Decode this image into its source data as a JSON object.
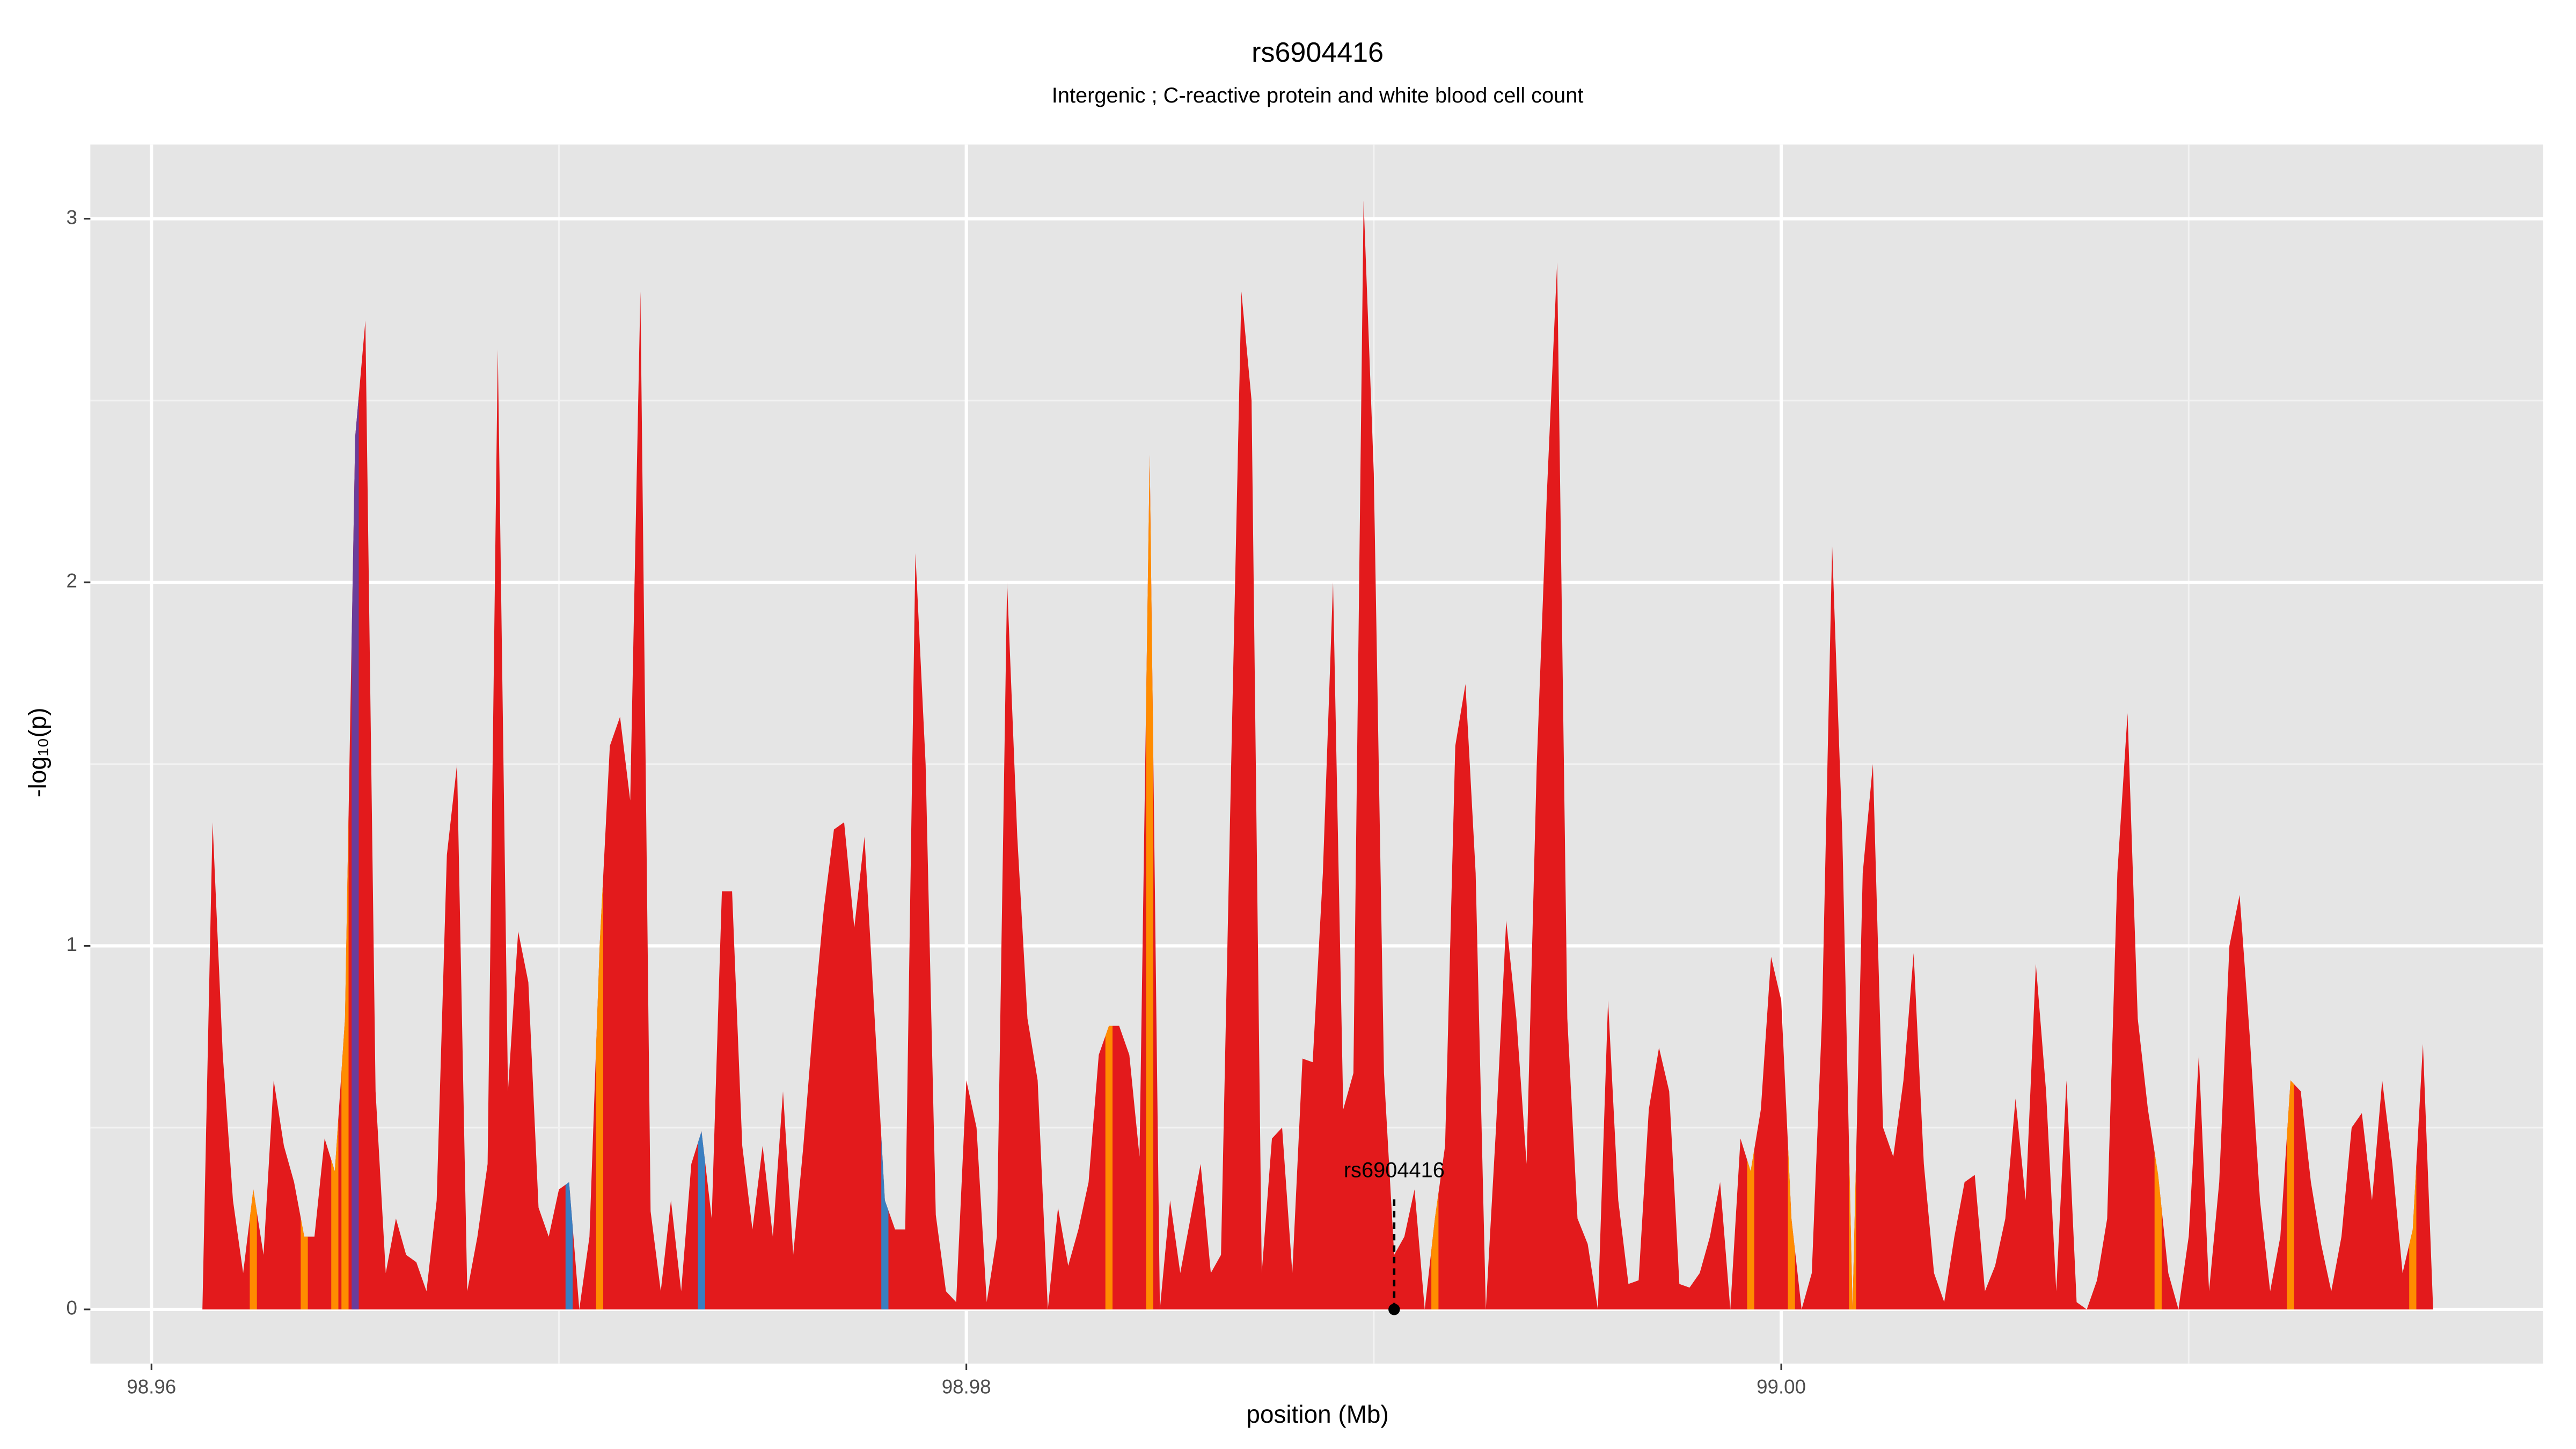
{
  "chart_data": {
    "type": "area",
    "title": "rs6904416",
    "subtitle": "Intergenic ; C-reactive protein and white blood cell count",
    "x_label": "position (Mb)",
    "y_label": "-log₁₀(p)",
    "xlim": [
      98.9585,
      99.0187
    ],
    "ylim": [
      -0.149,
      3.204
    ],
    "xticks": [
      98.96,
      98.98,
      {
        "value": 99,
        "label": "99.00"
      }
    ],
    "xminor": [
      98.97,
      98.99,
      99.01
    ],
    "yticks": [
      0,
      1,
      2,
      3
    ],
    "yminor": [
      0.5,
      1.5,
      2.5
    ],
    "grid": true,
    "background": "#e5e5e5",
    "series": [
      {
        "color": "#e31a1c",
        "x": [
          98.96125,
          98.9615,
          98.96175,
          98.962,
          98.96225,
          98.9625,
          98.96275,
          98.963,
          98.96325,
          98.9635,
          98.96375,
          98.964,
          98.96425,
          98.9645,
          98.96475,
          98.965,
          98.96525,
          98.9655,
          98.96575,
          98.966,
          98.96625,
          98.9665,
          98.96675,
          98.967,
          98.96725,
          98.9675,
          98.96775,
          98.968,
          98.96825,
          98.9685,
          98.96875,
          98.969,
          98.96925,
          98.9695,
          98.96975,
          98.97,
          98.97025,
          98.9705,
          98.97075,
          98.971,
          98.97125,
          98.9715,
          98.97175,
          98.972,
          98.97225,
          98.9725,
          98.97275,
          98.973,
          98.97325,
          98.9735,
          98.97375,
          98.974,
          98.97425,
          98.9745,
          98.97475,
          98.975,
          98.97525,
          98.9755,
          98.97575,
          98.976,
          98.97625,
          98.9765,
          98.97675,
          98.977,
          98.97725,
          98.9775,
          98.97775,
          98.978,
          98.97825,
          98.9785,
          98.97875,
          98.979,
          98.97925,
          98.9795,
          98.97975,
          98.98,
          98.98025,
          98.9805,
          98.98075,
          98.981,
          98.98125,
          98.9815,
          98.98175,
          98.982,
          98.98225,
          98.9825,
          98.98275,
          98.983,
          98.98325,
          98.9835,
          98.98375,
          98.984,
          98.98425,
          98.9845,
          98.98475,
          98.985,
          98.98525,
          98.9855,
          98.98575,
          98.986,
          98.98625,
          98.9865,
          98.98675,
          98.987,
          98.98725,
          98.9875,
          98.98775,
          98.988,
          98.98825,
          98.9885,
          98.98875,
          98.989,
          98.98925,
          98.9895,
          98.98975,
          98.99,
          98.99025,
          98.9905,
          98.99075,
          98.991,
          98.99125,
          98.9915,
          98.99175,
          98.992,
          98.99225,
          98.9925,
          98.99275,
          98.993,
          98.99325,
          98.9935,
          98.99375,
          98.994,
          98.99425,
          98.9945,
          98.99475,
          98.995,
          98.99525,
          98.9955,
          98.99575,
          98.996,
          98.99625,
          98.9965,
          98.99675,
          98.997,
          98.99725,
          98.9975,
          98.99775,
          98.998,
          98.99825,
          98.9985,
          98.99875,
          98.999,
          98.99925,
          98.9995,
          98.99975,
          99,
          99.00025,
          99.0005,
          99.00075,
          99.001,
          99.00125,
          99.0015,
          99.00175,
          99.002,
          99.00225,
          99.0025,
          99.00275,
          99.003,
          99.00325,
          99.0035,
          99.00375,
          99.004,
          99.00425,
          99.0045,
          99.00475,
          99.005,
          99.00525,
          99.0055,
          99.00575,
          99.006,
          99.00625,
          99.0065,
          99.00675,
          99.007,
          99.00725,
          99.0075,
          99.00775,
          99.008,
          99.00825,
          99.0085,
          99.00875,
          99.009,
          99.00925,
          99.0095,
          99.00975,
          99.01,
          99.01025,
          99.0105,
          99.01075,
          99.011,
          99.01125,
          99.0115,
          99.01175,
          99.012,
          99.01225,
          99.0125,
          99.01275,
          99.013,
          99.01325,
          99.0135,
          99.01375,
          99.014,
          99.01425,
          99.0145,
          99.01475,
          99.015,
          99.01525,
          99.0155,
          99.01575,
          99.016
        ],
        "values": [
          0,
          1.34,
          0.7,
          0.3,
          0.1,
          0.33,
          0.15,
          0.63,
          0.45,
          0.35,
          0.2,
          0.2,
          0.47,
          0.38,
          0.8,
          2.4,
          2.72,
          0.6,
          0.1,
          0.25,
          0.15,
          0.13,
          0.05,
          0.3,
          1.25,
          1.5,
          0.05,
          0.2,
          0.4,
          2.64,
          0.6,
          1.04,
          0.9,
          0.28,
          0.2,
          0.33,
          0.35,
          0,
          0.2,
          1.0,
          1.55,
          1.63,
          1.4,
          2.8,
          0.27,
          0.05,
          0.3,
          0.05,
          0.4,
          0.49,
          0.25,
          1.15,
          1.15,
          0.45,
          0.22,
          0.45,
          0.2,
          0.6,
          0.15,
          0.45,
          0.8,
          1.1,
          1.32,
          1.34,
          1.05,
          1.3,
          0.8,
          0.3,
          0.22,
          0.22,
          2.08,
          1.5,
          0.26,
          0.05,
          0.02,
          0.63,
          0.5,
          0.02,
          0.2,
          2.0,
          1.3,
          0.8,
          0.63,
          0,
          0.28,
          0.12,
          0.22,
          0.35,
          0.7,
          0.78,
          0.78,
          0.7,
          0.42,
          2.35,
          0,
          0.3,
          0.1,
          0.25,
          0.4,
          0.1,
          0.15,
          1.5,
          2.8,
          2.5,
          0.1,
          0.47,
          0.5,
          0.1,
          0.69,
          0.68,
          1.2,
          2.0,
          0.55,
          0.65,
          3.05,
          2.3,
          0.65,
          0.15,
          0.2,
          0.33,
          0,
          0.25,
          0.45,
          1.55,
          1.72,
          1.2,
          0,
          0.5,
          1.07,
          0.8,
          0.4,
          1.5,
          2.25,
          2.88,
          0.8,
          0.25,
          0.18,
          0,
          0.85,
          0.3,
          0.07,
          0.08,
          0.55,
          0.72,
          0.6,
          0.07,
          0.06,
          0.1,
          0.2,
          0.35,
          0,
          0.47,
          0.38,
          0.55,
          0.97,
          0.85,
          0.25,
          0,
          0.1,
          0.8,
          2.1,
          1.3,
          0,
          1.2,
          1.5,
          0.5,
          0.42,
          0.63,
          0.98,
          0.4,
          0.1,
          0.02,
          0.2,
          0.35,
          0.37,
          0.05,
          0.12,
          0.25,
          0.58,
          0.3,
          0.95,
          0.6,
          0.05,
          0.63,
          0.02,
          0,
          0.08,
          0.25,
          1.2,
          1.64,
          0.8,
          0.55,
          0.37,
          0.1,
          0,
          0.2,
          0.7,
          0.05,
          0.35,
          1.0,
          1.14,
          0.75,
          0.3,
          0.05,
          0.2,
          0.63,
          0.6,
          0.35,
          0.18,
          0.05,
          0.2,
          0.5,
          0.54,
          0.3,
          0.63,
          0.4,
          0.1,
          0.22,
          0.73,
          0
        ],
        "point_colors": [
          null,
          null,
          null,
          null,
          null,
          "#ff8c00",
          null,
          null,
          null,
          null,
          "#ff8c00",
          null,
          null,
          "#ff8c00",
          "#ff8c00",
          "#6a3d9a",
          null,
          null,
          null,
          null,
          null,
          null,
          null,
          null,
          null,
          null,
          null,
          null,
          null,
          null,
          null,
          null,
          null,
          null,
          null,
          null,
          "#3a7fc1",
          null,
          null,
          "#ff8c00",
          null,
          null,
          null,
          null,
          null,
          null,
          null,
          null,
          null,
          "#3a7fc1",
          null,
          null,
          null,
          null,
          null,
          null,
          null,
          null,
          null,
          null,
          null,
          null,
          null,
          null,
          null,
          null,
          null,
          "#3a7fc1",
          null,
          null,
          null,
          null,
          null,
          null,
          null,
          null,
          null,
          null,
          null,
          null,
          null,
          null,
          null,
          null,
          null,
          null,
          null,
          null,
          null,
          "#ff8c00",
          null,
          null,
          null,
          "#ff8c00",
          null,
          null,
          null,
          null,
          null,
          null,
          null,
          null,
          null,
          null,
          null,
          null,
          null,
          null,
          null,
          null,
          null,
          null,
          null,
          null,
          null,
          null,
          null,
          null,
          null,
          null,
          null,
          "#ff8c00",
          null,
          null,
          null,
          null,
          null,
          null,
          null,
          null,
          null,
          null,
          null,
          null,
          null,
          null,
          null,
          null,
          null,
          null,
          null,
          null,
          null,
          null,
          null,
          null,
          null,
          null,
          null,
          null,
          null,
          null,
          "#ff8c00",
          null,
          null,
          null,
          "#ff8c00",
          null,
          null,
          null,
          null,
          null,
          "#ff8c00",
          null,
          null,
          null,
          null,
          null,
          null,
          null,
          null,
          null,
          null,
          null,
          null,
          null,
          null,
          null,
          null,
          null,
          null,
          null,
          null,
          null,
          null,
          null,
          null,
          null,
          null,
          null,
          null,
          null,
          "#ff8c00",
          null,
          null,
          null,
          null,
          null,
          null,
          null,
          null,
          null,
          null,
          null,
          null,
          "#ff8c00",
          null,
          null,
          null,
          null,
          null,
          null,
          null,
          null,
          null,
          null,
          null,
          "#ff8c00",
          null,
          null
        ]
      }
    ],
    "annotation": {
      "label": "rs6904416",
      "x": 98.9905,
      "y": 0
    }
  }
}
